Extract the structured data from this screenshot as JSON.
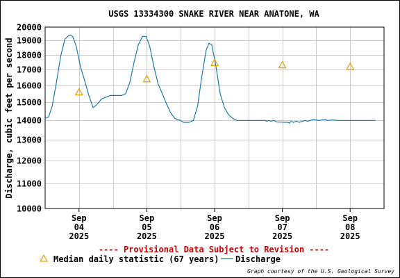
{
  "chart_data": {
    "type": "line",
    "title": "USGS 13334300 SNAKE RIVER NEAR ANATONE, WA",
    "ylabel": "Discharge, cubic feet per second",
    "xlabel": "",
    "y_scale": "log",
    "ylim": [
      10000,
      20000
    ],
    "y_ticks": [
      10000,
      11000,
      12000,
      13000,
      14000,
      15000,
      16000,
      17000,
      18000,
      19000,
      20000
    ],
    "y_tick_labels": [
      "10000",
      "11000",
      "12000",
      "13000",
      "14000",
      "15000",
      "16000",
      "17000",
      "18000",
      "19000",
      "20000"
    ],
    "xlim": [
      "2025-09-03T12:00",
      "2025-09-08T12:00"
    ],
    "x_ticks": [
      {
        "line1": "Sep",
        "line2": "04",
        "line3": "2025",
        "at": "2025-09-04T00:00"
      },
      {
        "line1": "Sep",
        "line2": "05",
        "line3": "2025",
        "at": "2025-09-05T00:00"
      },
      {
        "line1": "Sep",
        "line2": "06",
        "line3": "2025",
        "at": "2025-09-06T00:00"
      },
      {
        "line1": "Sep",
        "line2": "07",
        "line3": "2025",
        "at": "2025-09-07T00:00"
      },
      {
        "line1": "Sep",
        "line2": "08",
        "line3": "2025",
        "at": "2025-09-08T00:00"
      }
    ],
    "grid": true,
    "legend_position": "bottom",
    "series": [
      {
        "name": "Discharge",
        "color": "#1a7aa8",
        "points": [
          [
            "2025-09-03T12:00",
            14100
          ],
          [
            "2025-09-03T13:15",
            14200
          ],
          [
            "2025-09-03T14:30",
            14800
          ],
          [
            "2025-09-03T16:00",
            16200
          ],
          [
            "2025-09-03T17:30",
            17900
          ],
          [
            "2025-09-03T19:00",
            19100
          ],
          [
            "2025-09-03T20:30",
            19400
          ],
          [
            "2025-09-03T21:45",
            19300
          ],
          [
            "2025-09-03T23:00",
            18600
          ],
          [
            "2025-09-04T00:30",
            17200
          ],
          [
            "2025-09-04T02:00",
            16300
          ],
          [
            "2025-09-04T03:30",
            15400
          ],
          [
            "2025-09-04T05:00",
            14700
          ],
          [
            "2025-09-04T06:30",
            14900
          ],
          [
            "2025-09-04T08:00",
            15200
          ],
          [
            "2025-09-04T09:30",
            15300
          ],
          [
            "2025-09-04T11:00",
            15400
          ],
          [
            "2025-09-04T13:00",
            15400
          ],
          [
            "2025-09-04T15:00",
            15400
          ],
          [
            "2025-09-04T16:30",
            15500
          ],
          [
            "2025-09-04T18:00",
            16200
          ],
          [
            "2025-09-04T19:30",
            17500
          ],
          [
            "2025-09-04T21:00",
            18700
          ],
          [
            "2025-09-04T22:30",
            19300
          ],
          [
            "2025-09-04T23:45",
            19300
          ],
          [
            "2025-09-05T01:00",
            18600
          ],
          [
            "2025-09-05T02:30",
            17200
          ],
          [
            "2025-09-05T04:00",
            16100
          ],
          [
            "2025-09-05T05:30",
            15500
          ],
          [
            "2025-09-05T07:00",
            14900
          ],
          [
            "2025-09-05T08:30",
            14400
          ],
          [
            "2025-09-05T10:00",
            14100
          ],
          [
            "2025-09-05T12:00",
            14000
          ],
          [
            "2025-09-05T13:00",
            13900
          ],
          [
            "2025-09-05T15:00",
            13900
          ],
          [
            "2025-09-05T16:30",
            14000
          ],
          [
            "2025-09-05T18:00",
            14800
          ],
          [
            "2025-09-05T19:30",
            16600
          ],
          [
            "2025-09-05T21:00",
            18300
          ],
          [
            "2025-09-05T22:00",
            18800
          ],
          [
            "2025-09-05T23:00",
            18700
          ],
          [
            "2025-09-06T00:30",
            17200
          ],
          [
            "2025-09-06T02:00",
            15500
          ],
          [
            "2025-09-06T03:30",
            14700
          ],
          [
            "2025-09-06T05:00",
            14300
          ],
          [
            "2025-09-06T06:30",
            14100
          ],
          [
            "2025-09-06T08:00",
            14000
          ],
          [
            "2025-09-06T12:00",
            14000
          ],
          [
            "2025-09-06T18:00",
            14000
          ],
          [
            "2025-09-06T18:30",
            13950
          ],
          [
            "2025-09-06T19:00",
            14000
          ],
          [
            "2025-09-06T20:00",
            13960
          ],
          [
            "2025-09-06T21:00",
            14000
          ],
          [
            "2025-09-06T22:00",
            13920
          ],
          [
            "2025-09-07T02:00",
            13900
          ],
          [
            "2025-09-07T02:30",
            13850
          ],
          [
            "2025-09-07T03:00",
            13950
          ],
          [
            "2025-09-07T04:00",
            13900
          ],
          [
            "2025-09-07T05:00",
            13960
          ],
          [
            "2025-09-07T06:00",
            13900
          ],
          [
            "2025-09-07T08:00",
            14000
          ],
          [
            "2025-09-07T09:00",
            13960
          ],
          [
            "2025-09-07T11:00",
            14050
          ],
          [
            "2025-09-07T13:00",
            14000
          ],
          [
            "2025-09-07T15:00",
            14060
          ],
          [
            "2025-09-07T16:00",
            14000
          ],
          [
            "2025-09-07T18:00",
            14030
          ],
          [
            "2025-09-07T19:30",
            14000
          ],
          [
            "2025-09-08T00:00",
            14000
          ],
          [
            "2025-09-08T06:00",
            14000
          ],
          [
            "2025-09-08T09:00",
            14000
          ]
        ]
      },
      {
        "name": "Median daily statistic (67 years)",
        "color": "#e8a000",
        "marker": "triangle",
        "points": [
          [
            "2025-09-04T00:00",
            15600
          ],
          [
            "2025-09-05T00:00",
            16400
          ],
          [
            "2025-09-06T00:00",
            17450
          ],
          [
            "2025-09-07T00:00",
            17300
          ],
          [
            "2025-09-08T00:00",
            17200
          ]
        ]
      }
    ],
    "annotation": "---- Provisional Data Subject to Revision ----",
    "credit": "Graph courtesy of the U.S. Geological Survey",
    "colors": {
      "grid": "#cccccc",
      "provisional_text": "#cc0000",
      "plot_border": "#000000"
    }
  }
}
